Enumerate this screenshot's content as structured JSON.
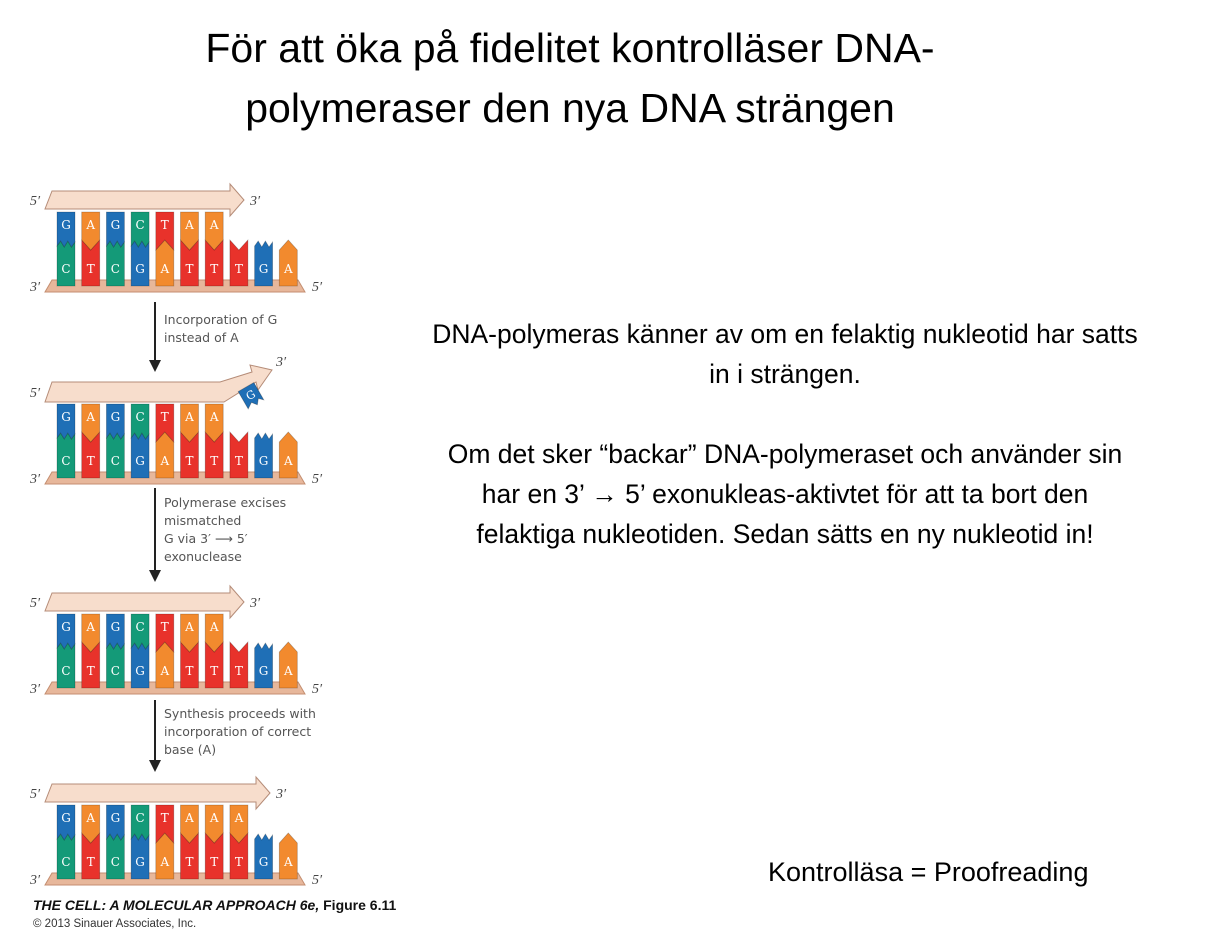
{
  "title": [
    "För att öka på fidelitet kontrolläser DNA-",
    "polymeraser den nya DNA strängen"
  ],
  "paragraphs": [
    "DNA-polymeras känner av om en felaktig nukleotid har satts in i strängen.",
    "Om det sker “backar” DNA-polymeraset och använder sin har en 3’ → 5’ exonukleas-aktivtet för att ta bort den felaktiga nukleotiden. Sedan sätts en ny nukleotid in!"
  ],
  "footer_note": "Kontrolläsa = Proofreading",
  "figure": {
    "base_colors": {
      "G": "#1f6fb6",
      "A": "#f28a2e",
      "C": "#149a78",
      "T": "#e8322b"
    },
    "strand_labels": {
      "five": "5′",
      "three": "3′"
    },
    "template_strand": [
      "C",
      "T",
      "C",
      "G",
      "A",
      "T",
      "T",
      "T",
      "G",
      "A"
    ],
    "panels": [
      {
        "new_strand": [
          "G",
          "A",
          "G",
          "C",
          "T",
          "A",
          "A"
        ],
        "mismatch": null
      },
      {
        "new_strand": [
          "G",
          "A",
          "G",
          "C",
          "T",
          "A",
          "A"
        ],
        "mismatch": "G"
      },
      {
        "new_strand": [
          "G",
          "A",
          "G",
          "C",
          "T",
          "A",
          "A"
        ],
        "mismatch": null
      },
      {
        "new_strand": [
          "G",
          "A",
          "G",
          "C",
          "T",
          "A",
          "A",
          "A"
        ],
        "mismatch": null
      }
    ],
    "steps": [
      [
        "Incorporation of G",
        "instead of A"
      ],
      [
        "Polymerase excises",
        "mismatched",
        "G via 3′ ⟶ 5′",
        "exonuclease"
      ],
      [
        "Synthesis proceeds with",
        "incorporation of correct",
        "base (A)"
      ]
    ],
    "credit_title": "THE CELL: A MOLECULAR APPROACH 6e,",
    "credit_figure": "Figure 6.11",
    "copyright": "© 2013 Sinauer Associates, Inc."
  }
}
